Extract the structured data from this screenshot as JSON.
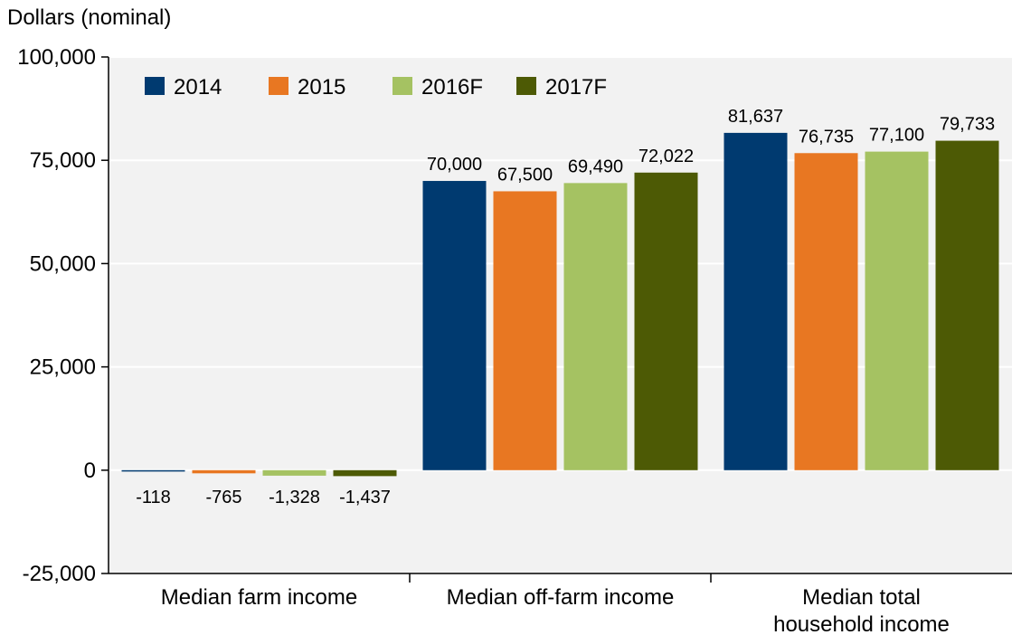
{
  "chart_data": {
    "type": "bar",
    "title": "",
    "ylabel": "Dollars (nominal)",
    "xlabel": "",
    "ylim": [
      -25000,
      100000
    ],
    "yticks": [
      -25000,
      0,
      25000,
      50000,
      75000,
      100000
    ],
    "ytick_labels": [
      "-25,000",
      "0",
      "25,000",
      "50,000",
      "75,000",
      "100,000"
    ],
    "grid": true,
    "legend_position": "top-left",
    "categories": [
      [
        "Median farm income"
      ],
      [
        "Median off-farm income"
      ],
      [
        "Median total",
        "household income"
      ]
    ],
    "series": [
      {
        "name": "2014",
        "color": "#003a70",
        "values": [
          -118,
          70000,
          81637
        ],
        "labels": [
          "-118",
          "70,000",
          "81,637"
        ]
      },
      {
        "name": "2015",
        "color": "#e87722",
        "values": [
          -765,
          67500,
          76735
        ],
        "labels": [
          "-765",
          "67,500",
          "76,735"
        ]
      },
      {
        "name": "2016F",
        "color": "#a5c262",
        "values": [
          -1328,
          69490,
          77100
        ],
        "labels": [
          "-1,328",
          "69,490",
          "77,100"
        ]
      },
      {
        "name": "2017F",
        "color": "#4d5a05",
        "values": [
          -1437,
          72022,
          79733
        ],
        "labels": [
          "-1,437",
          "72,022",
          "79,733"
        ]
      }
    ]
  }
}
